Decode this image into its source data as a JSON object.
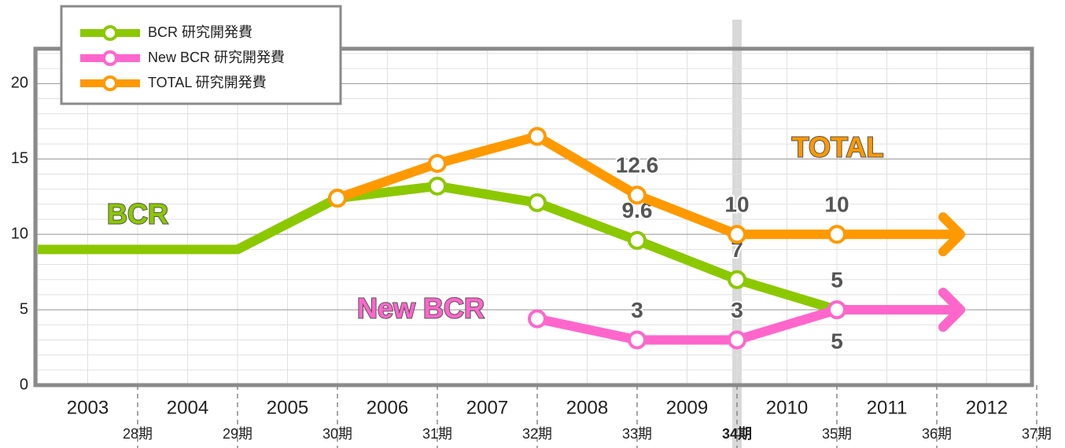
{
  "chart_data": {
    "type": "line",
    "categories": [
      null,
      "28期",
      "29期",
      "30期",
      "31期",
      "32期",
      "33期",
      "34期",
      "35期",
      "36期",
      "37期"
    ],
    "years": [
      "2003",
      "2004",
      "2005",
      "2006",
      "2007",
      "2008",
      "2009",
      "2010",
      "2011",
      "2012"
    ],
    "highlight": "34期",
    "ylim": [
      0,
      22
    ],
    "yticks": [
      0,
      5,
      10,
      15,
      20
    ],
    "grid": true,
    "legend": "top-left",
    "series": [
      {
        "name": "BCR 研究開発費",
        "label": "BCR",
        "color": "#8cc800",
        "values": [
          9,
          9,
          9,
          12.4,
          13.2,
          12.1,
          9.6,
          7,
          5,
          5,
          null
        ],
        "value_labels": [
          null,
          null,
          null,
          null,
          null,
          null,
          "9.6",
          "7",
          "5",
          null,
          null
        ]
      },
      {
        "name": "New BCR 研究開発費",
        "label": "New BCR",
        "color": "#ff66cc",
        "values": [
          null,
          null,
          null,
          null,
          null,
          4.4,
          3,
          3,
          5,
          5,
          null
        ],
        "value_labels": [
          null,
          null,
          null,
          null,
          null,
          null,
          "3",
          "3",
          "5",
          null,
          null
        ]
      },
      {
        "name": "TOTAL 研究開発費",
        "label": "TOTAL",
        "color": "#ff9900",
        "values": [
          null,
          null,
          null,
          12.4,
          14.7,
          16.5,
          12.6,
          10,
          10,
          10,
          null
        ],
        "value_labels": [
          null,
          null,
          null,
          null,
          null,
          null,
          "12.6",
          "10",
          "10",
          null,
          null
        ]
      }
    ]
  }
}
